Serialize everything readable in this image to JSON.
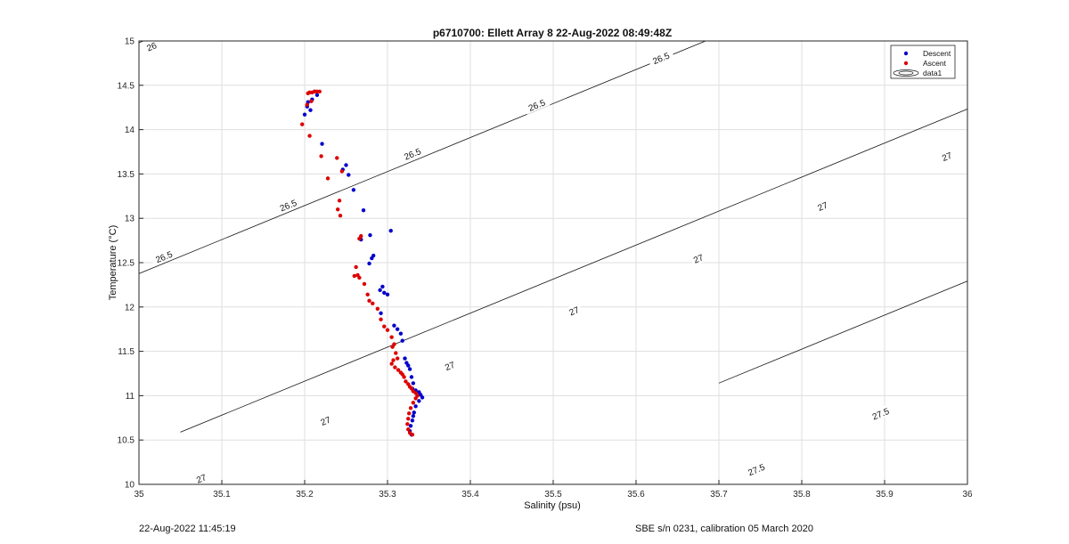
{
  "chart_data": {
    "type": "scatter",
    "title": "p6710700: Ellett Array 8 22-Aug-2022 08:49:48Z",
    "xlabel": "Salinity (psu)",
    "ylabel": "Temperature (°C)",
    "xlim": [
      35,
      36
    ],
    "ylim": [
      10,
      15
    ],
    "xticks": [
      "35",
      "35.1",
      "35.2",
      "35.3",
      "35.4",
      "35.5",
      "35.6",
      "35.7",
      "35.8",
      "35.9",
      "36"
    ],
    "yticks": [
      "10",
      "10.5",
      "11",
      "11.5",
      "12",
      "12.5",
      "13",
      "13.5",
      "14",
      "14.5",
      "15"
    ],
    "grid": true,
    "legend_position": "top-right",
    "legend": [
      "Descent",
      "Ascent",
      "data1"
    ],
    "series": [
      {
        "name": "Descent",
        "color": "#0000cc",
        "x": [
          35.212,
          35.215,
          35.209,
          35.204,
          35.203,
          35.207,
          35.2,
          35.221,
          35.25,
          35.246,
          35.253,
          35.259,
          35.271,
          35.304,
          35.279,
          35.268,
          35.283,
          35.281,
          35.278,
          35.294,
          35.291,
          35.296,
          35.3,
          35.292,
          35.308,
          35.312,
          35.316,
          35.318,
          35.321,
          35.323,
          35.325,
          35.327,
          35.329,
          35.331,
          35.33,
          35.334,
          35.338,
          35.34,
          35.342,
          35.338,
          35.334,
          35.332,
          35.331,
          35.33,
          35.328,
          35.327,
          35.329
        ],
        "y": [
          14.43,
          14.39,
          14.34,
          14.31,
          14.26,
          14.22,
          14.17,
          13.84,
          13.6,
          13.55,
          13.49,
          13.32,
          13.09,
          12.86,
          12.81,
          12.76,
          12.58,
          12.55,
          12.49,
          12.23,
          12.19,
          12.16,
          12.14,
          11.93,
          11.79,
          11.75,
          11.7,
          11.62,
          11.42,
          11.37,
          11.34,
          11.3,
          11.21,
          11.14,
          11.08,
          11.06,
          11.04,
          11.01,
          10.98,
          10.94,
          10.88,
          10.81,
          10.77,
          10.72,
          10.66,
          10.6,
          10.56
        ]
      },
      {
        "name": "Ascent",
        "color": "#dd0000",
        "x": [
          35.204,
          35.206,
          35.209,
          35.212,
          35.215,
          35.218,
          35.203,
          35.208,
          35.197,
          35.206,
          35.22,
          35.239,
          35.245,
          35.228,
          35.242,
          35.24,
          35.243,
          35.268,
          35.266,
          35.262,
          35.264,
          35.26,
          35.266,
          35.272,
          35.276,
          35.278,
          35.282,
          35.288,
          35.292,
          35.296,
          35.3,
          35.305,
          35.308,
          35.306,
          35.31,
          35.312,
          35.307,
          35.305,
          35.309,
          35.313,
          35.316,
          35.318,
          35.32,
          35.322,
          35.325,
          35.327,
          35.329,
          35.331,
          35.334,
          35.336,
          35.334,
          35.331,
          35.328,
          35.326,
          35.325,
          35.324,
          35.325,
          35.327,
          35.33
        ],
        "y": [
          14.41,
          14.42,
          14.42,
          14.43,
          14.43,
          14.43,
          14.28,
          14.32,
          14.06,
          13.93,
          13.7,
          13.68,
          13.53,
          13.45,
          13.2,
          13.1,
          13.03,
          12.8,
          12.77,
          12.45,
          12.36,
          12.35,
          12.33,
          12.26,
          12.14,
          12.07,
          12.04,
          11.98,
          11.86,
          11.78,
          11.74,
          11.66,
          11.58,
          11.55,
          11.48,
          11.42,
          11.4,
          11.36,
          11.32,
          11.29,
          11.26,
          11.24,
          11.21,
          11.16,
          11.13,
          11.1,
          11.08,
          11.05,
          11.03,
          11.0,
          10.97,
          10.92,
          10.86,
          10.8,
          10.74,
          10.68,
          10.62,
          10.58,
          10.56
        ]
      }
    ],
    "contours": [
      {
        "label": "26",
        "x": [
          34.95,
          35.08
        ]
      },
      {
        "label": "26.5",
        "x": [
          34.95,
          35.94
        ]
      },
      {
        "label": "27",
        "x": [
          35.05,
          36.05
        ]
      },
      {
        "label": "27.5",
        "x": [
          35.7,
          36.05
        ]
      }
    ],
    "contour_labels": [
      {
        "text": "26",
        "x": 35.015,
        "y": 14.94
      },
      {
        "text": "26.5",
        "x": 35.03,
        "y": 12.57
      },
      {
        "text": "26.5",
        "x": 35.18,
        "y": 13.15
      },
      {
        "text": "26.5",
        "x": 35.33,
        "y": 13.73
      },
      {
        "text": "26.5",
        "x": 35.48,
        "y": 14.28
      },
      {
        "text": "26.5",
        "x": 35.63,
        "y": 14.81
      },
      {
        "text": "27",
        "x": 35.075,
        "y": 10.07
      },
      {
        "text": "27",
        "x": 35.225,
        "y": 10.72
      },
      {
        "text": "27",
        "x": 35.375,
        "y": 11.34
      },
      {
        "text": "27",
        "x": 35.525,
        "y": 11.96
      },
      {
        "text": "27",
        "x": 35.675,
        "y": 12.55
      },
      {
        "text": "27",
        "x": 35.825,
        "y": 13.14
      },
      {
        "text": "27",
        "x": 35.975,
        "y": 13.7
      },
      {
        "text": "27.5",
        "x": 35.745,
        "y": 10.17
      },
      {
        "text": "27.5",
        "x": 35.895,
        "y": 10.8
      }
    ]
  },
  "footer": {
    "left": "22-Aug-2022 11:45:19",
    "right": "SBE s/n 0231, calibration 05 March 2020"
  }
}
